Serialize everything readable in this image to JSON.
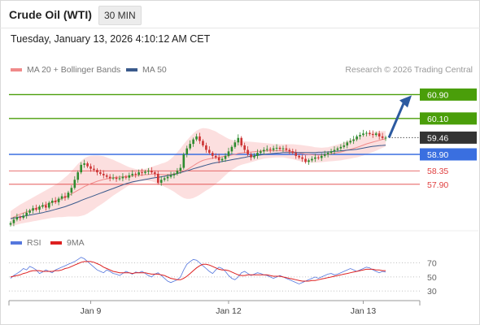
{
  "header": {
    "title": "Crude Oil (WTI)",
    "timeframe": "30 MIN"
  },
  "timestamp": "Tuesday, January 13, 2026 4:10:12 AM CET",
  "credit": "Research © 2026 Trading Central",
  "colors": {
    "resistance": "#4a9e0a",
    "support": "#e04040",
    "pivot": "#3a6fe0",
    "price_tag": "#333333",
    "bands_fill": "#fbd4d4",
    "ma20": "#f08a8a",
    "ma50": "#3a5a8c",
    "rsi": "#5577dd",
    "rsi_ma": "#dd2020",
    "arrow": "#2c5aa0",
    "candle_up": "#2e8b2e",
    "candle_down": "#cc3333"
  },
  "chart_data": [
    {
      "type": "candlestick",
      "legend": [
        {
          "label": "MA 20 + Bollinger Bands",
          "color": "#f08a8a"
        },
        {
          "label": "MA 50",
          "color": "#3a5a8c"
        }
      ],
      "xlim": [
        0,
        118
      ],
      "ylim": [
        56.4,
        61.4
      ],
      "x_ticks": [
        {
          "x": 25,
          "label": "Jan 9"
        },
        {
          "x": 68,
          "label": "Jan 12"
        },
        {
          "x": 110,
          "label": "Jan 13"
        }
      ],
      "levels": [
        {
          "value": 60.9,
          "label": "60.90",
          "kind": "resistance"
        },
        {
          "value": 60.1,
          "label": "60.10",
          "kind": "resistance"
        },
        {
          "value": 59.46,
          "label": "59.46",
          "kind": "price"
        },
        {
          "value": 58.9,
          "label": "58.90",
          "kind": "pivot"
        },
        {
          "value": 58.35,
          "label": "58.35",
          "kind": "support"
        },
        {
          "value": 57.9,
          "label": "57.90",
          "kind": "support"
        }
      ],
      "close": [
        56.6,
        56.72,
        56.8,
        56.78,
        56.85,
        56.95,
        57.02,
        57.1,
        57.05,
        57.15,
        57.2,
        57.12,
        57.28,
        57.35,
        57.3,
        57.42,
        57.5,
        57.45,
        57.62,
        57.78,
        58.05,
        58.3,
        58.55,
        58.6,
        58.5,
        58.42,
        58.38,
        58.3,
        58.25,
        58.2,
        58.15,
        58.1,
        58.12,
        58.08,
        58.1,
        58.15,
        58.12,
        58.2,
        58.25,
        58.22,
        58.3,
        58.28,
        58.32,
        58.35,
        58.3,
        58.25,
        57.95,
        58.05,
        58.1,
        58.15,
        58.2,
        58.25,
        58.35,
        58.45,
        58.9,
        59.1,
        59.25,
        59.4,
        59.5,
        59.35,
        59.2,
        59.05,
        58.95,
        58.85,
        58.8,
        58.7,
        58.75,
        58.85,
        59.0,
        59.15,
        59.3,
        59.45,
        59.2,
        59.05,
        58.9,
        58.8,
        58.85,
        58.95,
        59.0,
        59.05,
        59.08,
        59.05,
        59.1,
        59.12,
        59.08,
        59.1,
        59.05,
        59.0,
        58.95,
        58.85,
        58.8,
        58.75,
        58.65,
        58.7,
        58.75,
        58.8,
        58.78,
        58.85,
        58.9,
        58.95,
        59.0,
        59.05,
        59.1,
        59.15,
        59.2,
        59.3,
        59.35,
        59.4,
        59.5,
        59.55,
        59.6,
        59.62,
        59.58,
        59.55,
        59.6,
        59.5,
        59.45,
        59.46
      ],
      "ma20": [
        56.75,
        56.8,
        56.85,
        56.9,
        56.94,
        56.98,
        57.02,
        57.06,
        57.1,
        57.14,
        57.18,
        57.22,
        57.26,
        57.3,
        57.34,
        57.38,
        57.42,
        57.47,
        57.52,
        57.58,
        57.64,
        57.7,
        57.76,
        57.82,
        57.87,
        57.92,
        57.96,
        58.0,
        58.03,
        58.06,
        58.08,
        58.1,
        58.12,
        58.13,
        58.14,
        58.15,
        58.16,
        58.17,
        58.18,
        58.19,
        58.2,
        58.21,
        58.22,
        58.23,
        58.24,
        58.24,
        58.23,
        58.23,
        58.22,
        58.22,
        58.23,
        58.25,
        58.27,
        58.3,
        58.34,
        58.39,
        58.45,
        58.52,
        58.59,
        58.65,
        58.7,
        58.73,
        58.75,
        58.77,
        58.79,
        58.8,
        58.82,
        58.84,
        58.86,
        58.88,
        58.9,
        58.93,
        58.95,
        58.96,
        58.97,
        58.98,
        58.99,
        59.0,
        59.01,
        59.02,
        59.02,
        59.02,
        59.02,
        59.02,
        59.02,
        59.02,
        59.01,
        59.0,
        58.99,
        58.97,
        58.95,
        58.93,
        58.91,
        58.9,
        58.89,
        58.88,
        58.88,
        58.88,
        58.89,
        58.9,
        58.92,
        58.94,
        58.96,
        58.98,
        59.01,
        59.04,
        59.07,
        59.1,
        59.13,
        59.17,
        59.21,
        59.25,
        59.28,
        59.31,
        59.34,
        59.37,
        59.4,
        59.42
      ],
      "bb_width": [
        0.25,
        0.28,
        0.3,
        0.32,
        0.34,
        0.36,
        0.38,
        0.4,
        0.42,
        0.44,
        0.46,
        0.48,
        0.5,
        0.52,
        0.55,
        0.58,
        0.62,
        0.66,
        0.7,
        0.76,
        0.82,
        0.88,
        0.92,
        0.95,
        0.95,
        0.93,
        0.9,
        0.86,
        0.82,
        0.78,
        0.72,
        0.66,
        0.6,
        0.54,
        0.48,
        0.42,
        0.36,
        0.3,
        0.26,
        0.22,
        0.2,
        0.2,
        0.2,
        0.22,
        0.24,
        0.28,
        0.32,
        0.36,
        0.4,
        0.45,
        0.52,
        0.6,
        0.7,
        0.8,
        0.9,
        0.98,
        1.04,
        1.08,
        1.1,
        1.1,
        1.08,
        1.04,
        1.0,
        0.94,
        0.88,
        0.8,
        0.72,
        0.64,
        0.56,
        0.5,
        0.46,
        0.42,
        0.4,
        0.38,
        0.36,
        0.34,
        0.32,
        0.3,
        0.28,
        0.26,
        0.25,
        0.24,
        0.23,
        0.22,
        0.22,
        0.22,
        0.23,
        0.24,
        0.25,
        0.26,
        0.27,
        0.28,
        0.28,
        0.28,
        0.27,
        0.26,
        0.25,
        0.24,
        0.24,
        0.24,
        0.25,
        0.26,
        0.27,
        0.28,
        0.29,
        0.3,
        0.31,
        0.32,
        0.33,
        0.34,
        0.35,
        0.35,
        0.34,
        0.33,
        0.32,
        0.3,
        0.28,
        0.26
      ],
      "ma50": [
        56.75,
        56.77,
        56.79,
        56.81,
        56.83,
        56.85,
        56.87,
        56.89,
        56.91,
        56.93,
        56.95,
        56.98,
        57.0,
        57.03,
        57.06,
        57.09,
        57.12,
        57.15,
        57.19,
        57.23,
        57.27,
        57.31,
        57.36,
        57.4,
        57.44,
        57.48,
        57.52,
        57.56,
        57.6,
        57.64,
        57.68,
        57.72,
        57.76,
        57.8,
        57.84,
        57.88,
        57.92,
        57.95,
        57.98,
        58.0,
        58.02,
        58.04,
        58.06,
        58.08,
        58.1,
        58.12,
        58.13,
        58.15,
        58.17,
        58.19,
        58.21,
        58.23,
        58.26,
        58.29,
        58.32,
        58.35,
        58.38,
        58.42,
        58.45,
        58.48,
        58.51,
        58.54,
        58.57,
        58.6,
        58.62,
        58.64,
        58.66,
        58.68,
        58.7,
        58.72,
        58.74,
        58.76,
        58.78,
        58.8,
        58.82,
        58.84,
        58.85,
        58.87,
        58.88,
        58.9,
        58.91,
        58.92,
        58.93,
        58.94,
        58.95,
        58.96,
        58.96,
        58.96,
        58.96,
        58.96,
        58.96,
        58.96,
        58.96,
        58.96,
        58.96,
        58.96,
        58.97,
        58.97,
        58.98,
        58.98,
        58.99,
        59.0,
        59.01,
        59.02,
        59.03,
        59.04,
        59.05,
        59.06,
        59.07,
        59.09,
        59.11,
        59.13,
        59.15,
        59.17,
        59.18,
        59.19,
        59.2,
        59.21
      ]
    },
    {
      "type": "line",
      "legend": [
        {
          "label": "RSI",
          "color": "#5577dd"
        },
        {
          "label": "9MA",
          "color": "#dd2020"
        }
      ],
      "xlim": [
        0,
        118
      ],
      "ylim": [
        22,
        80
      ],
      "y_ticks": [
        70,
        50,
        30
      ],
      "series": [
        {
          "name": "RSI",
          "values": [
            48,
            52,
            55,
            58,
            62,
            60,
            65,
            63,
            60,
            55,
            57,
            60,
            58,
            56,
            60,
            62,
            64,
            66,
            68,
            70,
            72,
            75,
            78,
            76,
            72,
            68,
            64,
            60,
            58,
            56,
            60,
            58,
            55,
            54,
            52,
            55,
            58,
            56,
            54,
            57,
            56,
            58,
            55,
            52,
            50,
            54,
            56,
            52,
            48,
            44,
            42,
            44,
            46,
            50,
            60,
            68,
            72,
            75,
            74,
            70,
            66,
            62,
            58,
            55,
            60,
            64,
            62,
            58,
            52,
            48,
            46,
            50,
            56,
            58,
            55,
            52,
            54,
            56,
            55,
            53,
            52,
            50,
            48,
            50,
            52,
            50,
            48,
            46,
            44,
            42,
            40,
            42,
            44,
            46,
            48,
            50,
            48,
            50,
            52,
            54,
            55,
            53,
            54,
            56,
            58,
            60,
            62,
            60,
            58,
            60,
            62,
            64,
            63,
            60,
            58,
            56,
            58,
            57
          ]
        },
        {
          "name": "9MA",
          "values": [
            50,
            51,
            52,
            53,
            55,
            56,
            58,
            59,
            59,
            59,
            58,
            58,
            58,
            58,
            59,
            59,
            60,
            62,
            63,
            65,
            67,
            69,
            71,
            72,
            72,
            72,
            71,
            69,
            67,
            64,
            62,
            60,
            58,
            57,
            56,
            56,
            56,
            56,
            55,
            56,
            56,
            56,
            56,
            55,
            54,
            54,
            54,
            53,
            52,
            50,
            48,
            47,
            46,
            46,
            48,
            51,
            55,
            59,
            63,
            66,
            68,
            68,
            67,
            65,
            63,
            61,
            60,
            60,
            59,
            57,
            55,
            53,
            52,
            52,
            53,
            53,
            53,
            53,
            53,
            53,
            53,
            52,
            51,
            51,
            51,
            50,
            49,
            48,
            47,
            46,
            45,
            44,
            44,
            44,
            45,
            45,
            46,
            47,
            48,
            49,
            50,
            51,
            52,
            53,
            54,
            55,
            56,
            57,
            58,
            59,
            60,
            61,
            61,
            61,
            60,
            60,
            59,
            59
          ]
        }
      ]
    }
  ]
}
